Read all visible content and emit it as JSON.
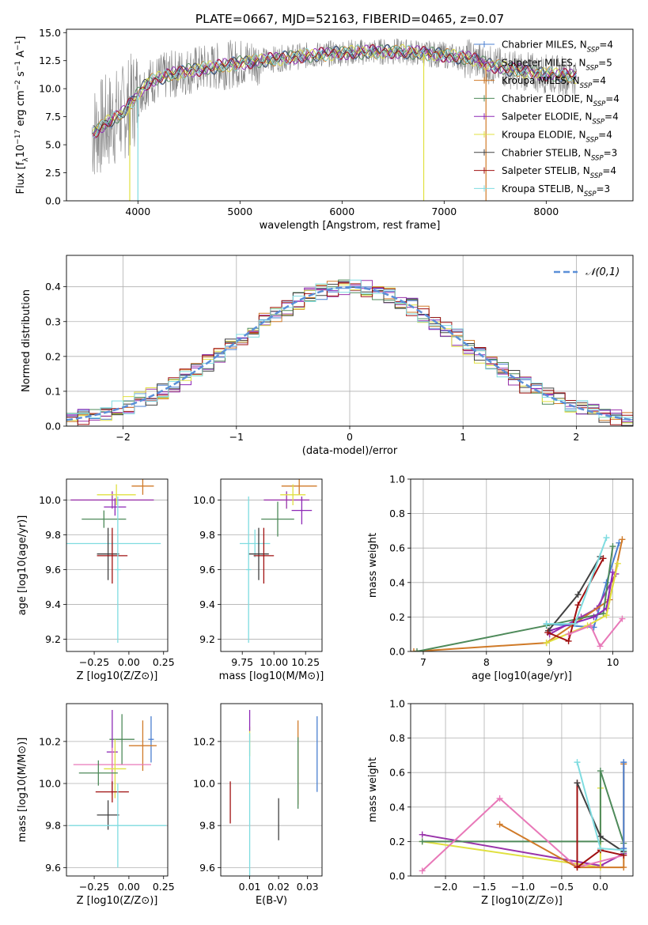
{
  "figure_title": "PLATE=0667, MJD=52163, FIBERID=0465, z=0.07",
  "colors": {
    "Chabrier MILES": "#4a7fd0",
    "Salpeter MILES": "#9933aa",
    "Kroupa MILES": "#d07a28",
    "Chabrier ELODIE": "#4e8a5a",
    "Salpeter ELODIE": "#8d28b6",
    "Kroupa ELODIE": "#e0e040",
    "Chabrier STELIB": "#404040",
    "Salpeter STELIB": "#a01010",
    "Kroupa STELIB": "#7fdce0",
    "data": "#808080",
    "pink": "#e878b8",
    "gauss": "#5b8fd8"
  },
  "chart_data": [
    {
      "panel": "spectrum",
      "type": "line",
      "title": "PLATE=0667, MJD=52163, FIBERID=0465, z=0.07",
      "xlabel": "wavelength [Angstrom, rest frame]",
      "ylabel": "Flux [f_λ 10^-17 erg cm^-2 s^-1 A^-1]",
      "xlim": [
        3300,
        8850
      ],
      "ylim": [
        0,
        15.3
      ],
      "xticks": [
        4000,
        5000,
        6000,
        7000,
        8000
      ],
      "yticks": [
        0.0,
        2.5,
        5.0,
        7.5,
        10.0,
        12.5,
        15.0
      ],
      "legend": [
        "Chabrier MILES, N_SSP=4",
        "Salpeter MILES, N_SSP=5",
        "Kroupa MILES, N_SSP=4",
        "Chabrier ELODIE, N_SSP=4",
        "Salpeter ELODIE, N_SSP=4",
        "Kroupa ELODIE, N_SSP=4",
        "Chabrier STELIB, N_SSP=3",
        "Salpeter STELIB, N_SSP=4",
        "Kroupa STELIB, N_SSP=3"
      ],
      "continuum_x": [
        3550,
        3700,
        3850,
        4000,
        4100,
        4300,
        4500,
        4800,
        5000,
        5300,
        5600,
        6000,
        6300,
        6600,
        7000,
        7300,
        7400,
        7600,
        7900,
        8300
      ],
      "continuum_y": [
        6.0,
        7.0,
        7.8,
        9.5,
        10.6,
        11.2,
        11.6,
        12.0,
        12.3,
        12.6,
        12.9,
        13.2,
        13.3,
        13.3,
        13.0,
        12.6,
        12.2,
        11.8,
        11.4,
        11.1
      ]
    },
    {
      "panel": "residuals",
      "type": "histogram",
      "xlabel": "(data-model)/error",
      "ylabel": "Normed distribution",
      "xlim": [
        -2.5,
        2.5
      ],
      "ylim": [
        0,
        0.49
      ],
      "xticks": [
        -2,
        -1,
        0,
        1,
        2
      ],
      "yticks": [
        0.0,
        0.1,
        0.2,
        0.3,
        0.4
      ],
      "legend": "𝒩(0,1)",
      "bin_edges_start": -2.5,
      "bin_width": 0.1,
      "series_offsets": [
        0.0,
        0.004,
        -0.006,
        0.007,
        -0.003,
        0.005,
        -0.008,
        0.009,
        -0.005
      ]
    },
    {
      "panel": "age_vs_Z",
      "type": "errorbar",
      "xlabel": "Z [log10(Z/Z⊙)]",
      "ylabel": "age  [log10(age/yr)]",
      "xlim": [
        -0.45,
        0.28
      ],
      "ylim": [
        9.13,
        10.12
      ],
      "xticks": [
        -0.25,
        0.0,
        0.25
      ],
      "yticks": [
        9.2,
        9.4,
        9.6,
        9.8,
        10.0
      ],
      "points": [
        {
          "x": 0.1,
          "xerr": 0.08,
          "y": 10.08,
          "yerr": 0.05,
          "color": "#d07a28"
        },
        {
          "x": -0.12,
          "xerr": 0.3,
          "y": 10.0,
          "yerr": 0.05,
          "color": "#9933aa"
        },
        {
          "x": -0.09,
          "xerr": 0.14,
          "y": 10.03,
          "yerr": 0.06,
          "color": "#e0e040"
        },
        {
          "x": -0.18,
          "xerr": 0.16,
          "y": 9.89,
          "yerr": 0.05,
          "color": "#4e8a5a"
        },
        {
          "x": -0.1,
          "xerr": 0.08,
          "y": 9.96,
          "yerr": 0.05,
          "color": "#8d28b6"
        },
        {
          "x": -0.12,
          "xerr": 0.35,
          "y": 9.75,
          "yerr": 0.04,
          "color": "#7fdce0"
        },
        {
          "x": -0.15,
          "xerr": 0.08,
          "y": 9.69,
          "yerr": 0.15,
          "color": "#404040"
        },
        {
          "x": -0.12,
          "xerr": 0.11,
          "y": 9.68,
          "yerr": 0.16,
          "color": "#a01010"
        },
        {
          "x": -0.08,
          "xerr": 0.02,
          "y": 9.6,
          "yerr": 0.42,
          "color": "#7fdce0"
        }
      ]
    },
    {
      "panel": "age_vs_mass",
      "type": "errorbar",
      "xlabel": "mass [log10(M/M⊙)]",
      "ylabel": "",
      "xlim": [
        9.58,
        10.38
      ],
      "ylim": [
        9.13,
        10.12
      ],
      "xticks": [
        9.75,
        10.0,
        10.25
      ],
      "yticks": [
        9.2,
        9.4,
        9.6,
        9.8,
        10.0
      ],
      "points": [
        {
          "x": 10.2,
          "xerr": 0.14,
          "y": 10.08,
          "yerr": 0.05,
          "color": "#d07a28"
        },
        {
          "x": 10.1,
          "xerr": 0.18,
          "y": 10.0,
          "yerr": 0.05,
          "color": "#9933aa"
        },
        {
          "x": 10.15,
          "xerr": 0.1,
          "y": 10.03,
          "yerr": 0.06,
          "color": "#e0e040"
        },
        {
          "x": 10.03,
          "xerr": 0.13,
          "y": 9.89,
          "yerr": 0.1,
          "color": "#4e8a5a"
        },
        {
          "x": 10.22,
          "xerr": 0.08,
          "y": 9.94,
          "yerr": 0.08,
          "color": "#8d28b6"
        },
        {
          "x": 9.85,
          "xerr": 0.12,
          "y": 9.75,
          "yerr": 0.08,
          "color": "#7fdce0"
        },
        {
          "x": 9.88,
          "xerr": 0.08,
          "y": 9.69,
          "yerr": 0.15,
          "color": "#404040"
        },
        {
          "x": 9.92,
          "xerr": 0.08,
          "y": 9.68,
          "yerr": 0.16,
          "color": "#a01010"
        },
        {
          "x": 9.8,
          "xerr": 0.02,
          "y": 9.6,
          "yerr": 0.42,
          "color": "#7fdce0"
        }
      ]
    },
    {
      "panel": "massweight_vs_age",
      "type": "line",
      "xlabel": "age  [log10(age/yr)]",
      "ylabel": "mass weight",
      "xlim": [
        6.8,
        10.32
      ],
      "ylim": [
        0.0,
        1.0
      ],
      "xticks": [
        7,
        8,
        9,
        10
      ],
      "yticks": [
        0.0,
        0.2,
        0.4,
        0.6,
        0.8,
        1.0
      ],
      "series": [
        {
          "color": "#4a7fd0",
          "x": [
            8.95,
            9.7,
            9.9,
            10.1
          ],
          "y": [
            0.16,
            0.14,
            0.4,
            0.63
          ]
        },
        {
          "color": "#9933aa",
          "x": [
            9.0,
            9.5,
            9.75,
            10.05
          ],
          "y": [
            0.1,
            0.2,
            0.25,
            0.45
          ]
        },
        {
          "color": "#d07a28",
          "x": [
            6.85,
            8.95,
            9.95,
            10.15
          ],
          "y": [
            0.0,
            0.05,
            0.3,
            0.65
          ]
        },
        {
          "color": "#4e8a5a",
          "x": [
            6.9,
            8.95,
            9.85,
            10.0
          ],
          "y": [
            0.0,
            0.15,
            0.22,
            0.61
          ]
        },
        {
          "color": "#8d28b6",
          "x": [
            9.0,
            9.7,
            9.9,
            10.0
          ],
          "y": [
            0.12,
            0.2,
            0.25,
            0.46
          ]
        },
        {
          "color": "#e0e040",
          "x": [
            8.95,
            9.6,
            9.9,
            10.08
          ],
          "y": [
            0.05,
            0.15,
            0.21,
            0.51
          ]
        },
        {
          "color": "#404040",
          "x": [
            8.98,
            9.45,
            9.8
          ],
          "y": [
            0.12,
            0.33,
            0.55
          ]
        },
        {
          "color": "#a01010",
          "x": [
            8.97,
            9.3,
            9.45,
            9.85
          ],
          "y": [
            0.11,
            0.06,
            0.27,
            0.54
          ]
        },
        {
          "color": "#7fdce0",
          "x": [
            8.95,
            9.4,
            9.9
          ],
          "y": [
            0.16,
            0.16,
            0.66
          ]
        },
        {
          "color": "#e878b8",
          "x": [
            9.3,
            9.65,
            9.8,
            10.15
          ],
          "y": [
            0.1,
            0.15,
            0.03,
            0.19
          ]
        }
      ]
    },
    {
      "panel": "mass_vs_Z",
      "type": "errorbar",
      "xlabel": "Z [log10(Z/Z⊙)]",
      "ylabel": "mass [log10(M/M⊙)]",
      "xlim": [
        -0.45,
        0.28
      ],
      "ylim": [
        9.56,
        10.38
      ],
      "xticks": [
        -0.25,
        0.0,
        0.25
      ],
      "yticks": [
        9.6,
        9.8,
        10.0,
        10.2
      ],
      "points": [
        {
          "x": 0.16,
          "xerr": 0.02,
          "y": 10.21,
          "yerr": 0.11,
          "color": "#4a7fd0"
        },
        {
          "x": 0.1,
          "xerr": 0.1,
          "y": 10.18,
          "yerr": 0.12,
          "color": "#d07a28"
        },
        {
          "x": -0.05,
          "xerr": 0.09,
          "y": 10.21,
          "yerr": 0.12,
          "color": "#4e8a5a"
        },
        {
          "x": -0.12,
          "xerr": 0.04,
          "y": 10.15,
          "yerr": 0.2,
          "color": "#8d28b6"
        },
        {
          "x": -0.12,
          "xerr": 0.28,
          "y": 10.09,
          "yerr": 0.08,
          "color": "#e878b8"
        },
        {
          "x": -0.1,
          "xerr": 0.08,
          "y": 10.07,
          "yerr": 0.14,
          "color": "#e0e040"
        },
        {
          "x": -0.22,
          "xerr": 0.14,
          "y": 10.05,
          "yerr": 0.06,
          "color": "#4e8a5a"
        },
        {
          "x": -0.12,
          "xerr": 0.12,
          "y": 9.96,
          "yerr": 0.05,
          "color": "#a01010"
        },
        {
          "x": -0.15,
          "xerr": 0.08,
          "y": 9.85,
          "yerr": 0.07,
          "color": "#404040"
        },
        {
          "x": -0.08,
          "xerr": 0.35,
          "y": 9.8,
          "yerr": 0.2,
          "color": "#7fdce0"
        }
      ]
    },
    {
      "panel": "mass_vs_ebv",
      "type": "errorbar",
      "xlabel": "E(B-V)",
      "ylabel": "",
      "xlim": [
        0.0,
        0.035
      ],
      "ylim": [
        9.56,
        10.38
      ],
      "xticks": [
        0.01,
        0.02,
        0.03
      ],
      "yticks": [
        9.6,
        9.8,
        10.0,
        10.2
      ],
      "points": [
        {
          "x": 0.0033,
          "y": 9.91,
          "yerr": 0.1,
          "color": "#a01010"
        },
        {
          "x": 0.01,
          "y": 10.2,
          "yerr": 0.07,
          "color": "#e0e040"
        },
        {
          "x": 0.01,
          "y": 10.3,
          "yerr": 0.05,
          "color": "#8d28b6"
        },
        {
          "x": 0.01,
          "y": 9.9,
          "yerr": 0.34,
          "color": "#7fdce0"
        },
        {
          "x": 0.02,
          "y": 9.83,
          "yerr": 0.1,
          "color": "#404040"
        },
        {
          "x": 0.0267,
          "y": 10.1,
          "yerr": 0.2,
          "color": "#d07a28"
        },
        {
          "x": 0.0267,
          "y": 10.05,
          "yerr": 0.17,
          "color": "#4e8a5a"
        },
        {
          "x": 0.0333,
          "y": 10.14,
          "yerr": 0.18,
          "color": "#4a7fd0"
        }
      ]
    },
    {
      "panel": "massweight_vs_Z",
      "type": "line",
      "xlabel": "Z [log10(Z/Z⊙)]",
      "ylabel": "mass weight",
      "xlim": [
        -2.45,
        0.42
      ],
      "ylim": [
        0.0,
        1.0
      ],
      "xticks": [
        -2.0,
        -1.5,
        -1.0,
        -0.5,
        0.0
      ],
      "yticks": [
        0.0,
        0.2,
        0.4,
        0.6,
        0.8,
        1.0
      ],
      "series": [
        {
          "color": "#9933aa",
          "x": [
            -2.3,
            0.0,
            0.3
          ],
          "y": [
            0.24,
            0.06,
            0.13
          ]
        },
        {
          "color": "#e0e040",
          "x": [
            -2.3,
            0.0,
            0.0
          ],
          "y": [
            0.2,
            0.05,
            0.51
          ]
        },
        {
          "color": "#4e8a5a",
          "x": [
            -2.3,
            0.0,
            0.0,
            0.3
          ],
          "y": [
            0.2,
            0.2,
            0.61,
            0.19
          ]
        },
        {
          "color": "#e878b8",
          "x": [
            -2.3,
            -1.3,
            -0.3,
            0.3
          ],
          "y": [
            0.03,
            0.45,
            0.05,
            0.12
          ]
        },
        {
          "color": "#d07a28",
          "x": [
            -1.3,
            -0.3,
            0.3,
            0.3
          ],
          "y": [
            0.3,
            0.05,
            0.05,
            0.65
          ]
        },
        {
          "color": "#a01010",
          "x": [
            -0.3,
            -0.3,
            0.0,
            0.3
          ],
          "y": [
            0.54,
            0.05,
            0.15,
            0.12
          ]
        },
        {
          "color": "#404040",
          "x": [
            -0.3,
            0.0,
            0.3
          ],
          "y": [
            0.54,
            0.23,
            0.14
          ]
        },
        {
          "color": "#7fdce0",
          "x": [
            -0.3,
            0.0,
            0.3
          ],
          "y": [
            0.66,
            0.16,
            0.15
          ]
        },
        {
          "color": "#4a7fd0",
          "x": [
            0.3,
            0.3
          ],
          "y": [
            0.16,
            0.66
          ]
        }
      ]
    }
  ]
}
